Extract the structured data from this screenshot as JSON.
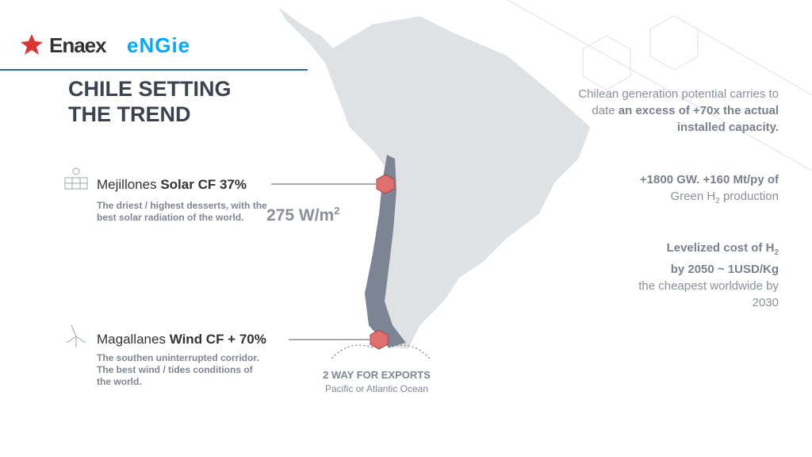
{
  "logos": {
    "enaex": "Enaex",
    "engie": "eNGie"
  },
  "title": {
    "lines": [
      "CHILE SETTING",
      "THE TREND"
    ]
  },
  "solar": {
    "place": "Mejillones",
    "highlight": "Solar CF 37%",
    "description": "The driest / highest desserts, with the best solar radiation of the world.",
    "irradiance": "275 W/m",
    "irradiance_sup": "2"
  },
  "wind": {
    "place": "Magallanes",
    "highlight": "Wind CF + 70%",
    "description": "The southen uninterrupted corridor. The best wind / tides conditions of the world."
  },
  "exports": {
    "title": "2 WAY FOR EXPORTS",
    "subtitle": "Pacific or Atlantic Ocean"
  },
  "facts": [
    {
      "text": "Chilean generation potential carries to date",
      "bold": "an excess of +70x the actual installed capacity."
    },
    {
      "bold": "+1800 GW. +160 Mt/py of",
      "text": "Green H",
      "sub": "2",
      "text2": "production"
    },
    {
      "bold": "Levelized cost of H",
      "sub": "2",
      "bold2": "by 2050 ~ 1USD/Kg",
      "text": "the cheapest worldwide by 2030"
    }
  ]
}
